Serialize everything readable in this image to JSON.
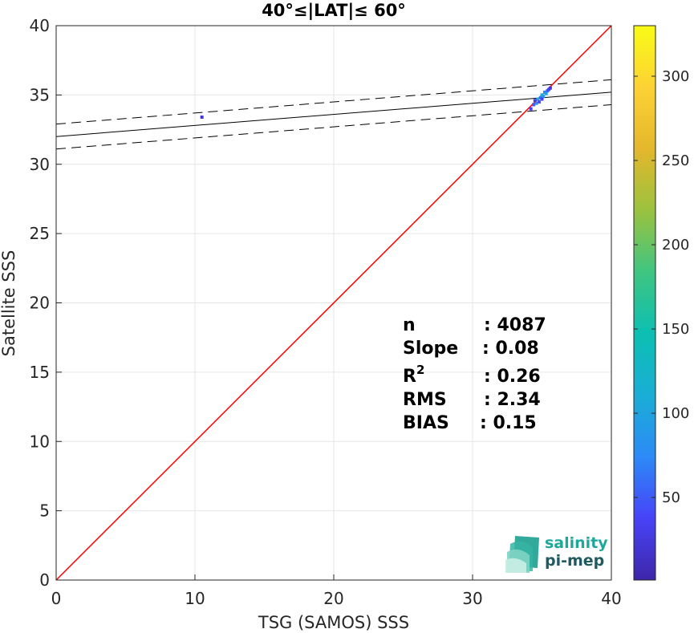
{
  "chart_data": {
    "type": "scatter",
    "title": "40°≤|LAT|≤ 60°",
    "xlabel": "TSG (SAMOS) SSS",
    "ylabel": "Satellite SSS",
    "xlim": [
      0,
      40
    ],
    "ylim": [
      0,
      40
    ],
    "xticks": [
      "0",
      "10",
      "20",
      "30",
      "40"
    ],
    "yticks": [
      "0",
      "5",
      "10",
      "15",
      "20",
      "25",
      "30",
      "35",
      "40"
    ],
    "grid": true,
    "identity_line": {
      "x": [
        0,
        40
      ],
      "y": [
        0,
        40
      ],
      "color": "#ff0000"
    },
    "fit_line": {
      "x": [
        0,
        40
      ],
      "y": [
        32.0,
        35.2
      ],
      "color": "#000000"
    },
    "fit_bounds": [
      {
        "x": [
          0,
          40
        ],
        "y": [
          32.9,
          36.1
        ]
      },
      {
        "x": [
          0,
          40
        ],
        "y": [
          31.1,
          34.3
        ]
      }
    ],
    "density_points": [
      {
        "x": 10.5,
        "y": 33.4,
        "count": 20
      },
      {
        "x": 34.2,
        "y": 34.0,
        "count": 30
      },
      {
        "x": 34.4,
        "y": 34.3,
        "count": 50
      },
      {
        "x": 34.6,
        "y": 34.4,
        "count": 80
      },
      {
        "x": 34.7,
        "y": 34.7,
        "count": 110
      },
      {
        "x": 34.9,
        "y": 34.8,
        "count": 60
      },
      {
        "x": 35.0,
        "y": 35.0,
        "count": 120
      },
      {
        "x": 35.1,
        "y": 34.9,
        "count": 90
      },
      {
        "x": 35.2,
        "y": 35.2,
        "count": 70
      },
      {
        "x": 35.3,
        "y": 35.1,
        "count": 100
      },
      {
        "x": 35.4,
        "y": 35.3,
        "count": 60
      },
      {
        "x": 35.5,
        "y": 35.4,
        "count": 40
      },
      {
        "x": 35.6,
        "y": 35.5,
        "count": 25
      },
      {
        "x": 34.8,
        "y": 34.5,
        "count": 45
      },
      {
        "x": 35.0,
        "y": 34.7,
        "count": 35
      },
      {
        "x": 34.5,
        "y": 34.6,
        "count": 30
      }
    ],
    "colorbar": {
      "range": [
        1,
        330
      ],
      "ticks": [
        "50",
        "100",
        "150",
        "200",
        "250",
        "300"
      ],
      "colormap": [
        "#3e26a8",
        "#4743f8",
        "#2d8af7",
        "#1aaed6",
        "#0cbfb2",
        "#3fc581",
        "#9bc23f",
        "#e4b72c",
        "#fdd235",
        "#f9fb15"
      ]
    },
    "stats": {
      "labels": [
        "n",
        "Slope",
        "R",
        "RMS",
        "BIAS"
      ],
      "r_superscript": "2",
      "values": [
        ": 4087",
        ": 0.08",
        ": 0.26",
        ": 2.34",
        ": 0.15"
      ]
    }
  },
  "logo": {
    "line1": "salinity",
    "line2": "pi-mep",
    "color1": "#1fa89a",
    "color2": "#1f5a5e"
  }
}
